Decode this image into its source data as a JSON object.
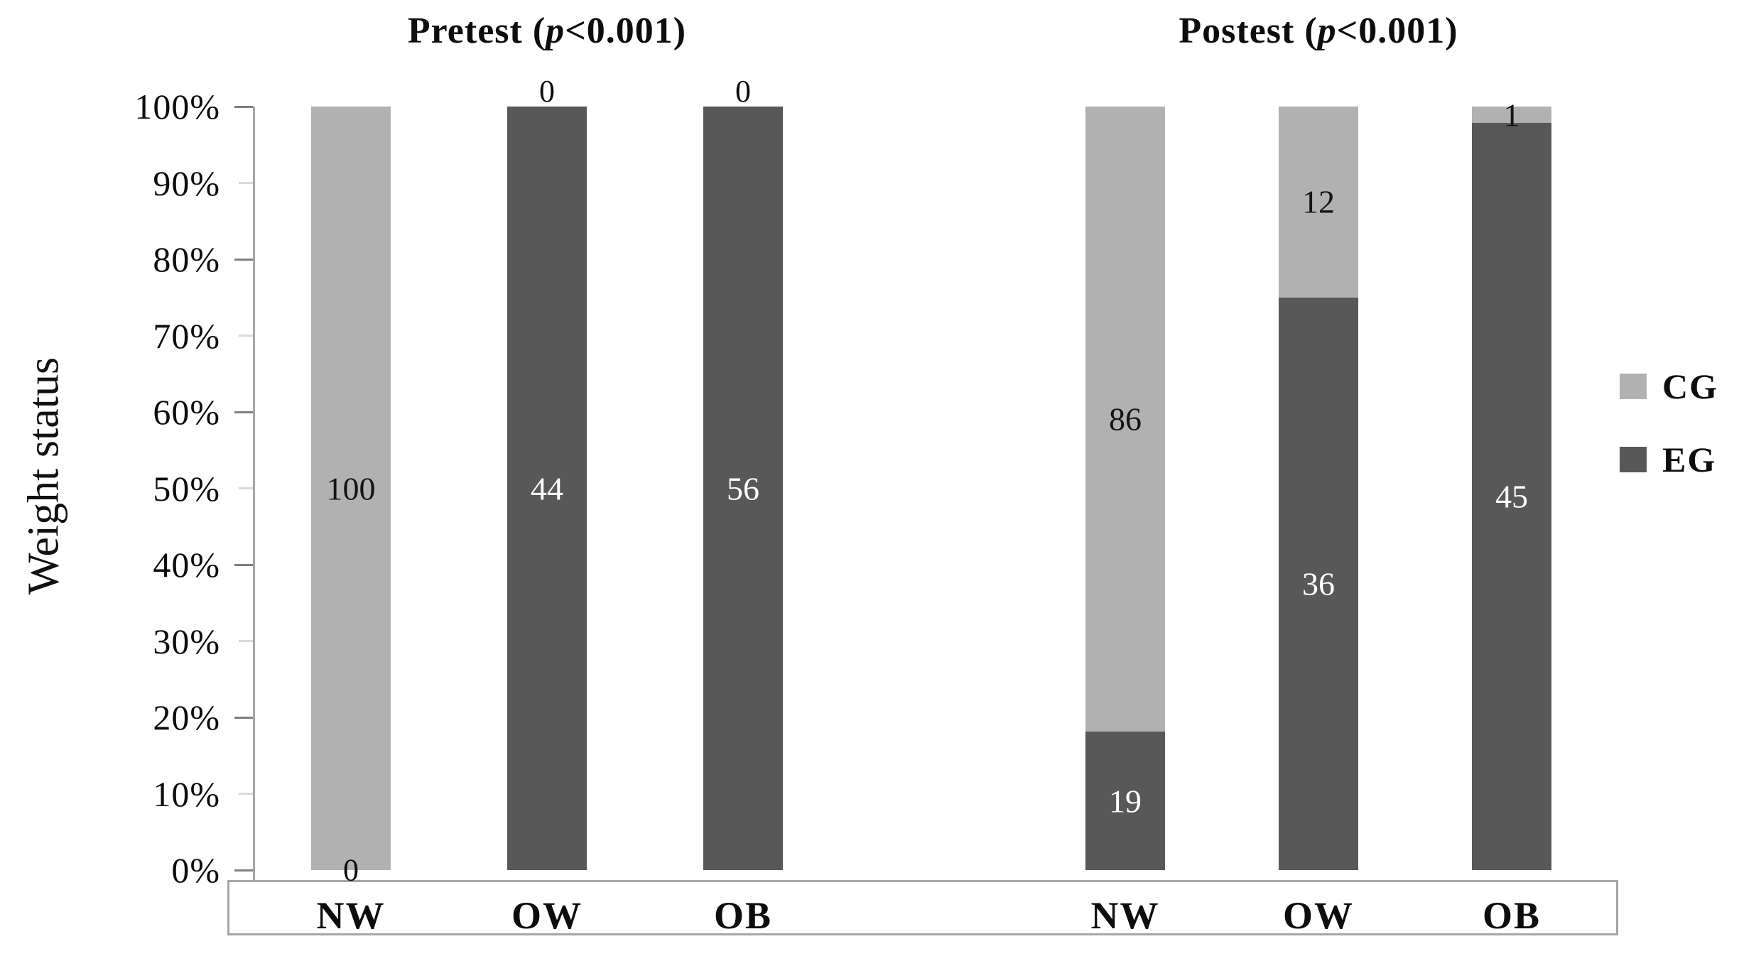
{
  "chart_data": {
    "type": "bar",
    "subtype": "100-percent-stacked-column",
    "title": "",
    "ylabel": "Weight status",
    "xlabel": "",
    "grid": false,
    "ylim": [
      0,
      100
    ],
    "y_tick_labels": [
      "100%",
      "90%",
      "80%",
      "70%",
      "60%",
      "50%",
      "40%",
      "30%",
      "20%",
      "10%",
      "0%"
    ],
    "stack_order_bottom_to_top": [
      "EG",
      "CG"
    ],
    "legend": {
      "position": "right",
      "entries": [
        {
          "name": "CG",
          "color": "#b1b1b1"
        },
        {
          "name": "EG",
          "color": "#585858"
        }
      ]
    },
    "panels": [
      {
        "title": "Pretest (p<0.001)",
        "title_prefix": "Pretest (",
        "title_italic": "p",
        "title_suffix": "<0.001)",
        "categories": [
          "NW",
          "OW",
          "OB"
        ],
        "series": [
          {
            "name": "CG",
            "values": [
              100,
              0,
              0
            ]
          },
          {
            "name": "EG",
            "values": [
              0,
              44,
              56
            ]
          }
        ]
      },
      {
        "title": "Postest (p<0.001)",
        "title_prefix": "Postest (",
        "title_italic": "p",
        "title_suffix": "<0.001)",
        "categories": [
          "NW",
          "OW",
          "OB"
        ],
        "series": [
          {
            "name": "CG",
            "values": [
              86,
              12,
              1
            ]
          },
          {
            "name": "EG",
            "values": [
              19,
              36,
              45
            ]
          }
        ]
      }
    ]
  }
}
